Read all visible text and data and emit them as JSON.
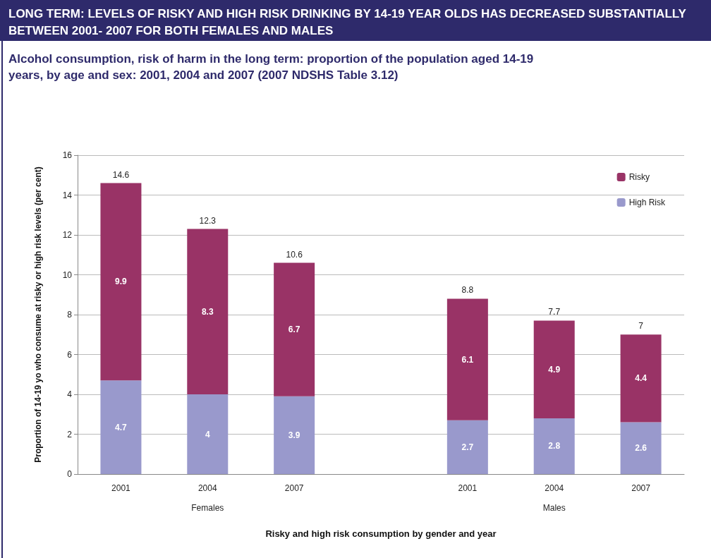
{
  "chart_data": {
    "type": "bar",
    "title": "LONG TERM: LEVELS OF RISKY AND HIGH RISK DRINKING BY 14-19 YEAR OLDS HAS DECREASED SUBSTANTIALLY BETWEEN 2001- 2007 FOR BOTH FEMALES AND MALES",
    "subtitle": "Alcohol consumption, risk of harm in the long term: proportion of the population aged 14-19 years, by age and sex: 2001, 2004 and 2007 (2007 NDSHS Table 3.12)",
    "xlabel": "Risky and high risk consumption by gender and year",
    "ylabel": "Proportion of 14-19 yo who consume at risky or high risk levels (per cent)",
    "categories": [
      "2001",
      "2004",
      "2007",
      null,
      "2001",
      "2004",
      "2007"
    ],
    "stacked": true,
    "series": [
      {
        "name": "High Risk",
        "color": "#9999cc",
        "values": [
          4.7,
          4,
          3.9,
          null,
          2.7,
          2.8,
          2.6
        ]
      },
      {
        "name": "Risky",
        "color": "#993366",
        "values": [
          9.9,
          8.3,
          6.7,
          null,
          6.1,
          4.9,
          4.4
        ]
      }
    ],
    "totals": [
      "14.6",
      "12.3",
      "10.6",
      null,
      "8.8",
      "7.7",
      "7"
    ],
    "annotations": [
      "Females",
      "Males"
    ],
    "data_labels": true,
    "ylim": [
      0,
      16
    ],
    "yticks": [
      0,
      2,
      4,
      6,
      8,
      10,
      12,
      14,
      16
    ],
    "grid": "y",
    "legend": "top right"
  }
}
